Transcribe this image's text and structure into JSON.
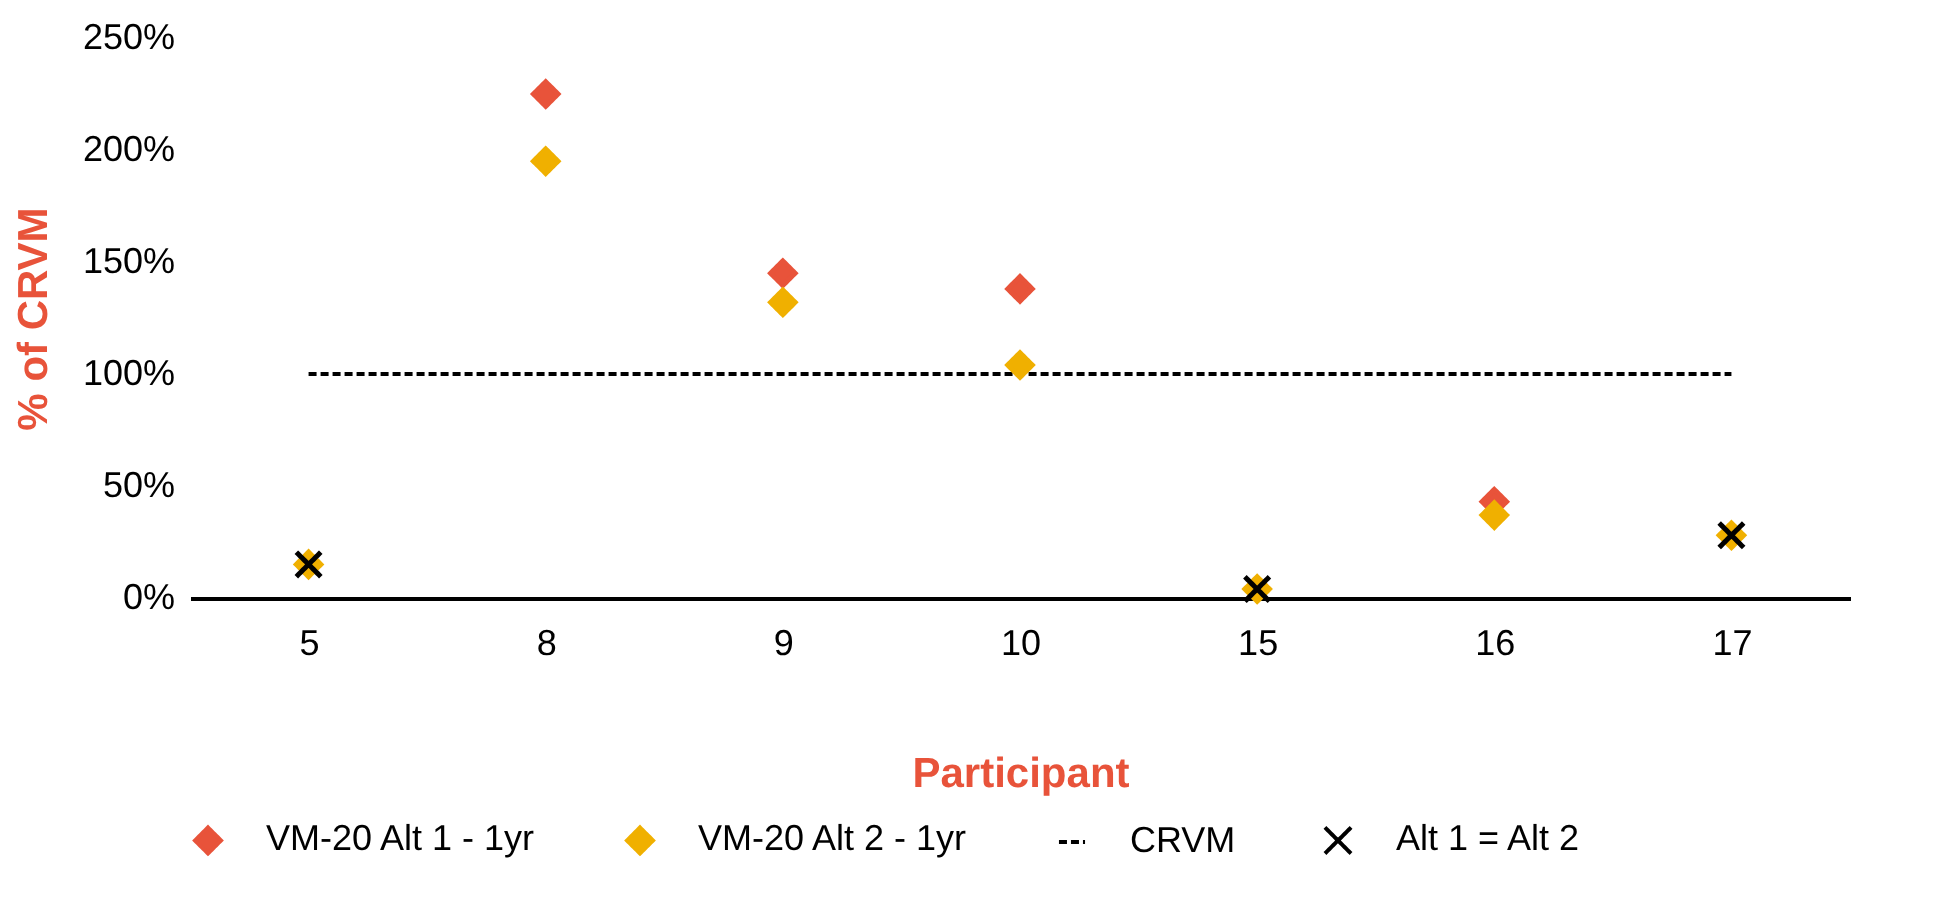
{
  "chart_data": {
    "type": "scatter",
    "xlabel": "Participant",
    "ylabel": "% of CRVM",
    "categories": [
      "5",
      "8",
      "9",
      "10",
      "15",
      "16",
      "17"
    ],
    "series": [
      {
        "name": "VM-20 Alt 1 - 1yr",
        "color": "#e8533a",
        "marker": "diamond",
        "values": [
          null,
          225,
          145,
          138,
          null,
          43,
          null
        ]
      },
      {
        "name": "VM-20 Alt 2 - 1yr",
        "color": "#f0b000",
        "marker": "diamond",
        "values": [
          15,
          195,
          132,
          104,
          4,
          37,
          28
        ]
      },
      {
        "name": "CRVM",
        "type": "line",
        "color": "#000000",
        "line_style": "dashed",
        "values": [
          100,
          100,
          100,
          100,
          100,
          100,
          100
        ]
      },
      {
        "name": "Alt 1 = Alt 2",
        "color": "#000000",
        "marker": "cross",
        "values": [
          15,
          null,
          null,
          null,
          4,
          null,
          28
        ]
      }
    ],
    "ylim": [
      0,
      250
    ],
    "yticks": [
      {
        "value": 0,
        "label": "0%"
      },
      {
        "value": 50,
        "label": "50%"
      },
      {
        "value": 100,
        "label": "100%"
      },
      {
        "value": 150,
        "label": "150%"
      },
      {
        "value": 200,
        "label": "200%"
      },
      {
        "value": 250,
        "label": "250%"
      }
    ],
    "grid": false,
    "legend": "bottom"
  }
}
